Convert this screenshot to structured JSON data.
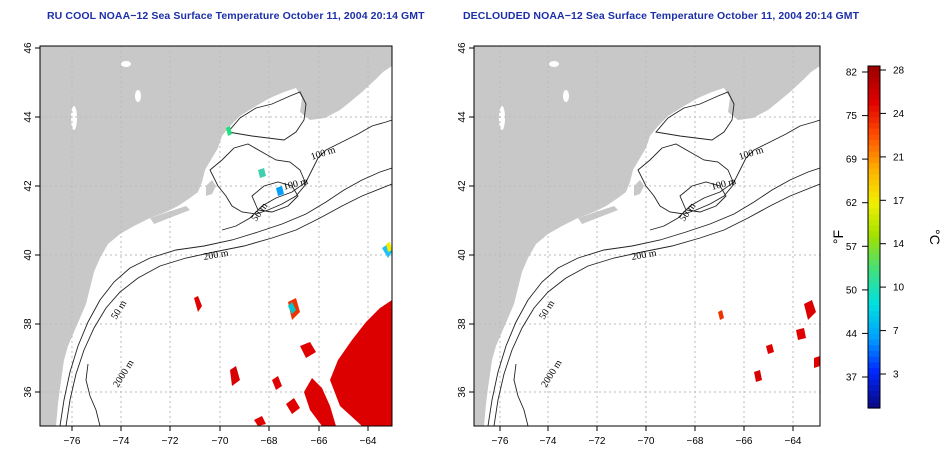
{
  "panels": [
    {
      "id": "left",
      "title": "RU COOL NOAA−12 Sea Surface Temperature October 11, 2004 20:14 GMT",
      "clouded": true
    },
    {
      "id": "right",
      "title": "DECLOUDED NOAA−12 Sea Surface Temperature October 11, 2004 20:14 GMT",
      "clouded": false
    }
  ],
  "x_ticks": [
    "−76",
    "−74",
    "−72",
    "−70",
    "−68",
    "−66",
    "−64"
  ],
  "y_ticks": [
    "36",
    "38",
    "40",
    "42",
    "44",
    "46"
  ],
  "contour_labels": {
    "left": [
      "100 m",
      "100 m",
      "50 m",
      "200 m",
      "50 m",
      "2000 m"
    ],
    "right": [
      "100 m",
      "100 m",
      "50 m",
      "200 m",
      "50 m",
      "2000 m"
    ]
  },
  "colorbar": {
    "fahrenheit_ticks": [
      "82",
      "75",
      "69",
      "62",
      "57",
      "50",
      "44",
      "37"
    ],
    "celsius_ticks": [
      "28",
      "24",
      "21",
      "17",
      "14",
      "10",
      "7",
      "3"
    ],
    "unit_f": "°F",
    "unit_c": "°C",
    "colors": [
      "#0a0a8c",
      "#0028ff",
      "#00a0ff",
      "#00e0e0",
      "#40e080",
      "#a0e000",
      "#f0f000",
      "#ffb000",
      "#ff5000",
      "#e00000",
      "#a00000"
    ]
  },
  "colors": {
    "land": "#c8c8c8",
    "ocean": "#ffffff",
    "title": "#1c2fa8"
  }
}
